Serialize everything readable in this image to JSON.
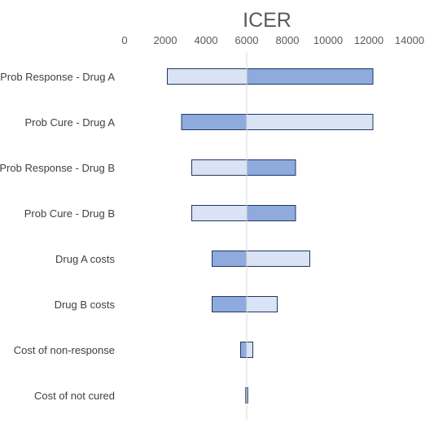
{
  "chart_data": {
    "type": "bar",
    "orientation": "horizontal",
    "title": "ICER",
    "base": 6000,
    "xlim": [
      0,
      14000
    ],
    "xticks": [
      0,
      2000,
      4000,
      6000,
      8000,
      10000,
      12000,
      14000
    ],
    "xaxis_position": "top",
    "grid": false,
    "legend": "none",
    "categories": [
      "Prob Response - Drug A",
      "Prob Cure - Drug A",
      "Prob Response - Drug B",
      "Prob Cure - Drug B",
      "Drug A costs",
      "Drug B costs",
      "Cost of non-response",
      "Cost of not cured"
    ],
    "series": [
      {
        "color": "#dae3f3",
        "values": [
          2100,
          12200,
          3300,
          3300,
          9100,
          7500,
          6300,
          5950
        ]
      },
      {
        "color": "#8faadc",
        "values": [
          12200,
          2800,
          8400,
          8400,
          4300,
          4300,
          5700,
          6050
        ]
      }
    ]
  }
}
